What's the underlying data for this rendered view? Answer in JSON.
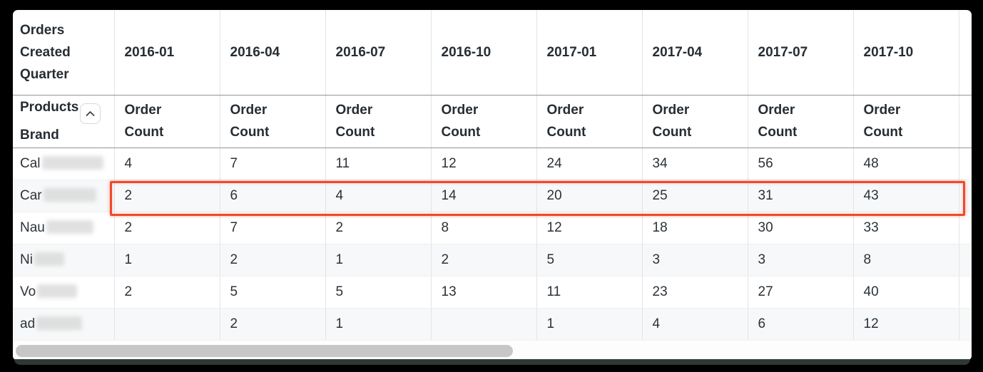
{
  "table": {
    "corner_header": "Orders Created Quarter",
    "dimension": {
      "line1": "Products",
      "line2": "Brand"
    },
    "sort_icon": "chevron-up-icon",
    "quarters": [
      "2016-01",
      "2016-04",
      "2016-07",
      "2016-10",
      "2017-01",
      "2017-04",
      "2017-07",
      "2017-10"
    ],
    "measure_label": "Order Count",
    "rows": [
      {
        "brand_prefix": "Cal",
        "highlighted": false,
        "values": [
          "4",
          "7",
          "11",
          "12",
          "24",
          "34",
          "56",
          "48"
        ]
      },
      {
        "brand_prefix": "Car",
        "highlighted": true,
        "values": [
          "2",
          "6",
          "4",
          "14",
          "20",
          "25",
          "31",
          "43"
        ]
      },
      {
        "brand_prefix": "Nau",
        "highlighted": false,
        "values": [
          "2",
          "7",
          "2",
          "8",
          "12",
          "18",
          "30",
          "33"
        ]
      },
      {
        "brand_prefix": "Ni",
        "highlighted": false,
        "values": [
          "1",
          "2",
          "1",
          "2",
          "5",
          "3",
          "3",
          "8"
        ]
      },
      {
        "brand_prefix": "Vo",
        "highlighted": false,
        "values": [
          "2",
          "5",
          "5",
          "13",
          "11",
          "23",
          "27",
          "40"
        ]
      },
      {
        "brand_prefix": "ad",
        "highlighted": false,
        "values": [
          "",
          "2",
          "1",
          "",
          "1",
          "4",
          "6",
          "12"
        ]
      }
    ],
    "highlight_color": "#f0492a"
  }
}
